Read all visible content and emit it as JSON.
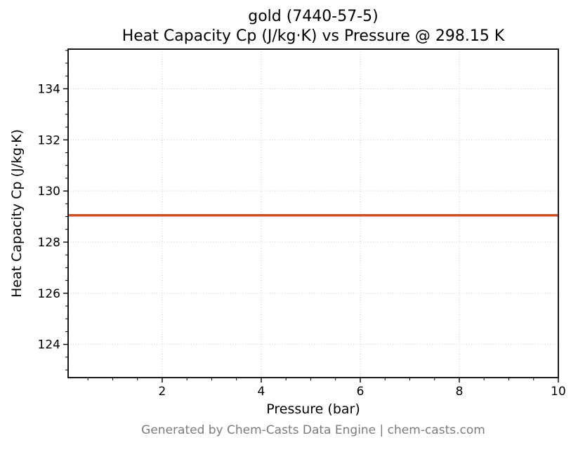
{
  "header": {
    "title_line1": "gold (7440-57-5)",
    "title_line2": "Heat Capacity Cp (J/kg·K) vs Pressure @ 298.15 K"
  },
  "footer": {
    "text": "Generated by Chem-Casts Data Engine | chem-casts.com",
    "color": "#7b7b7b"
  },
  "chart_data": {
    "type": "line",
    "title": "gold (7440-57-5)",
    "subtitle": "Heat Capacity Cp (J/kg·K) vs Pressure @ 298.15 K",
    "xlabel": "Pressure (bar)",
    "ylabel": "Heat Capacity Cp (J/kg·K)",
    "xlim": [
      0.1,
      10
    ],
    "ylim": [
      122.7,
      135.55
    ],
    "xticks": [
      2,
      4,
      6,
      8,
      10
    ],
    "yticks": [
      124,
      126,
      128,
      130,
      132,
      134
    ],
    "x_minor_step": 0.5,
    "y_minor_step": 0.5,
    "grid": true,
    "grid_style": "dotted",
    "grid_color": "#c9c9c9",
    "legend": false,
    "series": [
      {
        "name": "Heat Capacity Cp",
        "x": [
          0.1,
          10
        ],
        "y": [
          129.05,
          129.05
        ],
        "color": "#d14e23",
        "width": 3.5
      }
    ]
  }
}
